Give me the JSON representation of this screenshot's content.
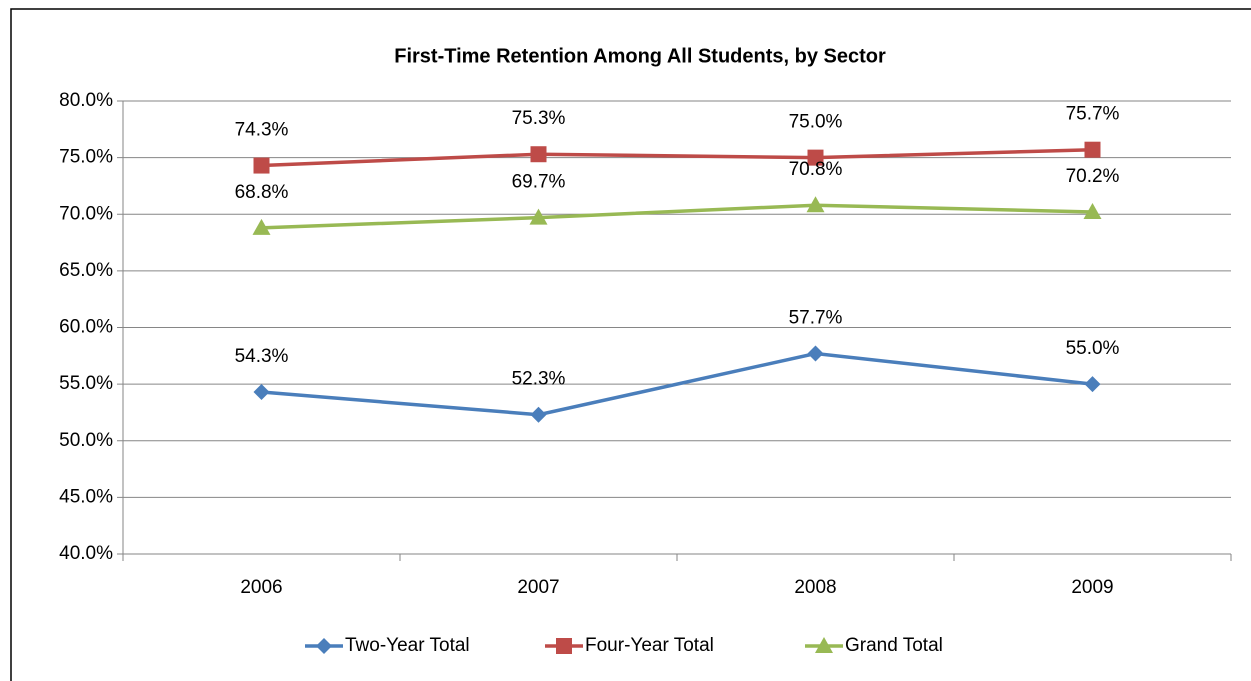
{
  "chart_data": {
    "type": "line",
    "title": "First-Time Retention Among All Students, by Sector",
    "categories": [
      "2006",
      "2007",
      "2008",
      "2009"
    ],
    "series": [
      {
        "name": "Two-Year Total",
        "color": "#4a7ebb",
        "marker": "diamond",
        "values": [
          54.3,
          52.3,
          57.7,
          55.0
        ],
        "value_labels": [
          "54.3%",
          "52.3%",
          "57.7%",
          "55.0%"
        ]
      },
      {
        "name": "Four-Year Total",
        "color": "#be4b48",
        "marker": "square",
        "values": [
          74.3,
          75.3,
          75.0,
          75.7
        ],
        "value_labels": [
          "74.3%",
          "75.3%",
          "75.0%",
          "75.7%"
        ]
      },
      {
        "name": "Grand Total",
        "color": "#98b954",
        "marker": "triangle",
        "values": [
          68.8,
          69.7,
          70.8,
          70.2
        ],
        "value_labels": [
          "68.8%",
          "69.7%",
          "70.8%",
          "70.2%"
        ]
      }
    ],
    "ylim": [
      40,
      80
    ],
    "yticks": [
      {
        "value": 40,
        "label": "40.0%"
      },
      {
        "value": 45,
        "label": "45.0%"
      },
      {
        "value": 50,
        "label": "50.0%"
      },
      {
        "value": 55,
        "label": "55.0%"
      },
      {
        "value": 60,
        "label": "60.0%"
      },
      {
        "value": 65,
        "label": "65.0%"
      },
      {
        "value": 70,
        "label": "70.0%"
      },
      {
        "value": 75,
        "label": "75.0%"
      },
      {
        "value": 80,
        "label": "80.0%"
      }
    ],
    "grid": true,
    "legend": "bottom"
  }
}
